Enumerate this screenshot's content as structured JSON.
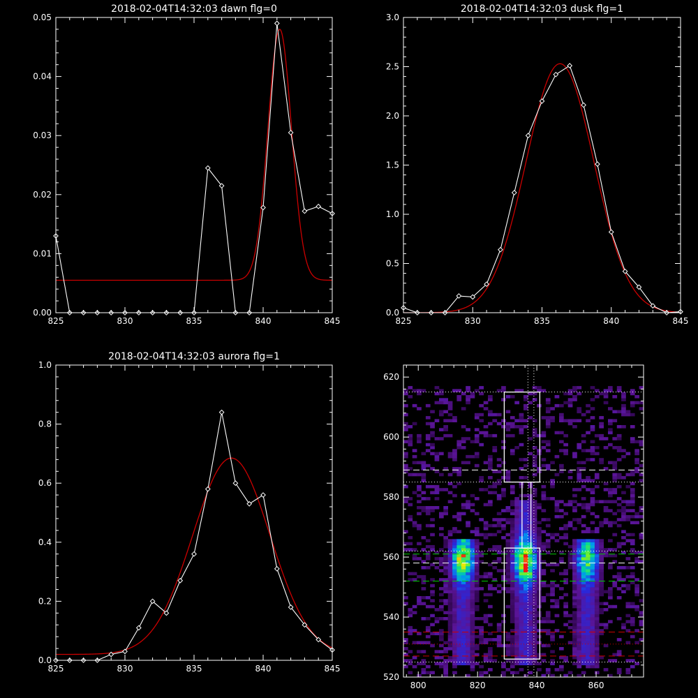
{
  "chart_data": [
    {
      "type": "line",
      "title": "2018-02-04T14:32:03 dawn flg=0",
      "xlim": [
        825,
        845
      ],
      "ylim": [
        0,
        0.05
      ],
      "xticks": [
        825,
        830,
        835,
        840,
        845
      ],
      "yticks": [
        0.0,
        0.01,
        0.02,
        0.03,
        0.04,
        0.05
      ],
      "ytick_labels": [
        "0.00",
        "0.01",
        "0.02",
        "0.03",
        "0.04",
        "0.05"
      ],
      "series": [
        {
          "kind": "data",
          "color": "#ffffff",
          "markers": "diamond",
          "x": [
            825,
            826,
            827,
            828,
            829,
            830,
            831,
            832,
            833,
            834,
            835,
            836,
            837,
            838,
            839,
            840,
            841,
            842,
            843,
            844,
            845
          ],
          "y": [
            0.013,
            0.0,
            0.0,
            0.0,
            0.0,
            0.0,
            0.0,
            0.0,
            0.0,
            0.0,
            0.0,
            0.0245,
            0.0215,
            0.0,
            0.0,
            0.0178,
            0.049,
            0.0305,
            0.0172,
            0.018,
            0.0168
          ]
        },
        {
          "kind": "fit",
          "color": "#cc0000",
          "gauss": {
            "amp": 0.0425,
            "center": 841.2,
            "sigma": 0.85,
            "offset": 0.0055
          }
        }
      ]
    },
    {
      "type": "line",
      "title": "2018-02-04T14:32:03 dusk flg=1",
      "xlim": [
        825,
        845
      ],
      "ylim": [
        0,
        3.0
      ],
      "xticks": [
        825,
        830,
        835,
        840,
        845
      ],
      "yticks": [
        0.0,
        0.5,
        1.0,
        1.5,
        2.0,
        2.5,
        3.0
      ],
      "ytick_labels": [
        "0.0",
        "0.5",
        "1.0",
        "1.5",
        "2.0",
        "2.5",
        "3.0"
      ],
      "series": [
        {
          "kind": "data",
          "color": "#ffffff",
          "markers": "diamond",
          "x": [
            825,
            826,
            827,
            828,
            829,
            830,
            831,
            832,
            833,
            834,
            835,
            836,
            837,
            838,
            839,
            840,
            841,
            842,
            843,
            844,
            845
          ],
          "y": [
            0.05,
            0.0,
            0.0,
            0.0,
            0.17,
            0.16,
            0.29,
            0.64,
            1.22,
            1.8,
            2.15,
            2.42,
            2.51,
            2.11,
            1.51,
            0.82,
            0.42,
            0.26,
            0.07,
            0.0,
            0.01
          ]
        },
        {
          "kind": "fit",
          "color": "#cc0000",
          "gauss": {
            "amp": 2.53,
            "center": 836.3,
            "sigma": 2.45,
            "offset": 0.0
          }
        }
      ]
    },
    {
      "type": "line",
      "title": "2018-02-04T14:32:03 aurora flg=1",
      "xlim": [
        825,
        845
      ],
      "ylim": [
        0,
        1.0
      ],
      "xticks": [
        825,
        830,
        835,
        840,
        845
      ],
      "yticks": [
        0.0,
        0.2,
        0.4,
        0.6,
        0.8,
        1.0
      ],
      "ytick_labels": [
        "0.0",
        "0.2",
        "0.4",
        "0.6",
        "0.8",
        "1.0"
      ],
      "series": [
        {
          "kind": "data",
          "color": "#ffffff",
          "markers": "diamond",
          "x": [
            825,
            826,
            827,
            828,
            829,
            830,
            831,
            832,
            833,
            834,
            835,
            836,
            837,
            838,
            839,
            840,
            841,
            842,
            843,
            844,
            845
          ],
          "y": [
            0.0,
            0.0,
            0.0,
            0.0,
            0.02,
            0.03,
            0.11,
            0.2,
            0.16,
            0.27,
            0.36,
            0.58,
            0.84,
            0.6,
            0.53,
            0.56,
            0.31,
            0.18,
            0.12,
            0.07,
            0.035
          ]
        },
        {
          "kind": "fit",
          "color": "#cc0000",
          "gauss": {
            "amp": 0.665,
            "center": 837.7,
            "sigma": 2.8,
            "offset": 0.02
          }
        }
      ]
    },
    {
      "type": "heatmap",
      "title": "",
      "xlim": [
        795,
        876
      ],
      "ylim": [
        520,
        624
      ],
      "xticks": [
        800,
        820,
        840,
        860
      ],
      "yticks": [
        520,
        540,
        560,
        580,
        600,
        620
      ],
      "emission_columns": [
        {
          "center": 815,
          "ylo": 524,
          "yhi": 565,
          "peak_y": 559,
          "peak": 0.85
        },
        {
          "center": 836,
          "ylo": 524,
          "yhi": 578,
          "peak_y": 558,
          "peak": 1.0
        },
        {
          "center": 857,
          "ylo": 524,
          "yhi": 565,
          "peak_y": 559,
          "peak": 0.7
        }
      ],
      "boxes": [
        {
          "x0": 829,
          "x1": 841,
          "y0": 526,
          "y1": 563,
          "color": "#ffffff"
        },
        {
          "x0": 829,
          "x1": 841,
          "y0": 585,
          "y1": 615,
          "color": "#ffffff"
        },
        {
          "x0": 835,
          "x1": 838,
          "y0": 563,
          "y1": 585,
          "color": "#ffffff"
        }
      ],
      "vlines": [
        {
          "x": 837,
          "color": "#ffffff",
          "style": "dotted"
        },
        {
          "x": 839,
          "color": "#ffffff",
          "style": "dotted"
        }
      ],
      "hlines": [
        {
          "y": 615,
          "color": "#ffffff",
          "style": "dotted"
        },
        {
          "y": 589,
          "color": "#ffffff",
          "style": "dashed"
        },
        {
          "y": 585,
          "color": "#ffffff",
          "style": "dotted"
        },
        {
          "y": 562,
          "color": "#ffffff",
          "style": "dotted"
        },
        {
          "y": 561,
          "color": "#00cc00",
          "style": "dashed"
        },
        {
          "y": 558,
          "color": "#ffffff",
          "style": "dashed"
        },
        {
          "y": 552,
          "color": "#00cc00",
          "style": "dashed"
        },
        {
          "y": 535,
          "color": "#cc0000",
          "style": "dashed"
        },
        {
          "y": 531,
          "color": "#cc0000",
          "style": "dotted"
        },
        {
          "y": 527,
          "color": "#cc0000",
          "style": "dashed"
        },
        {
          "y": 525,
          "color": "#ffffff",
          "style": "dotted"
        }
      ]
    }
  ]
}
